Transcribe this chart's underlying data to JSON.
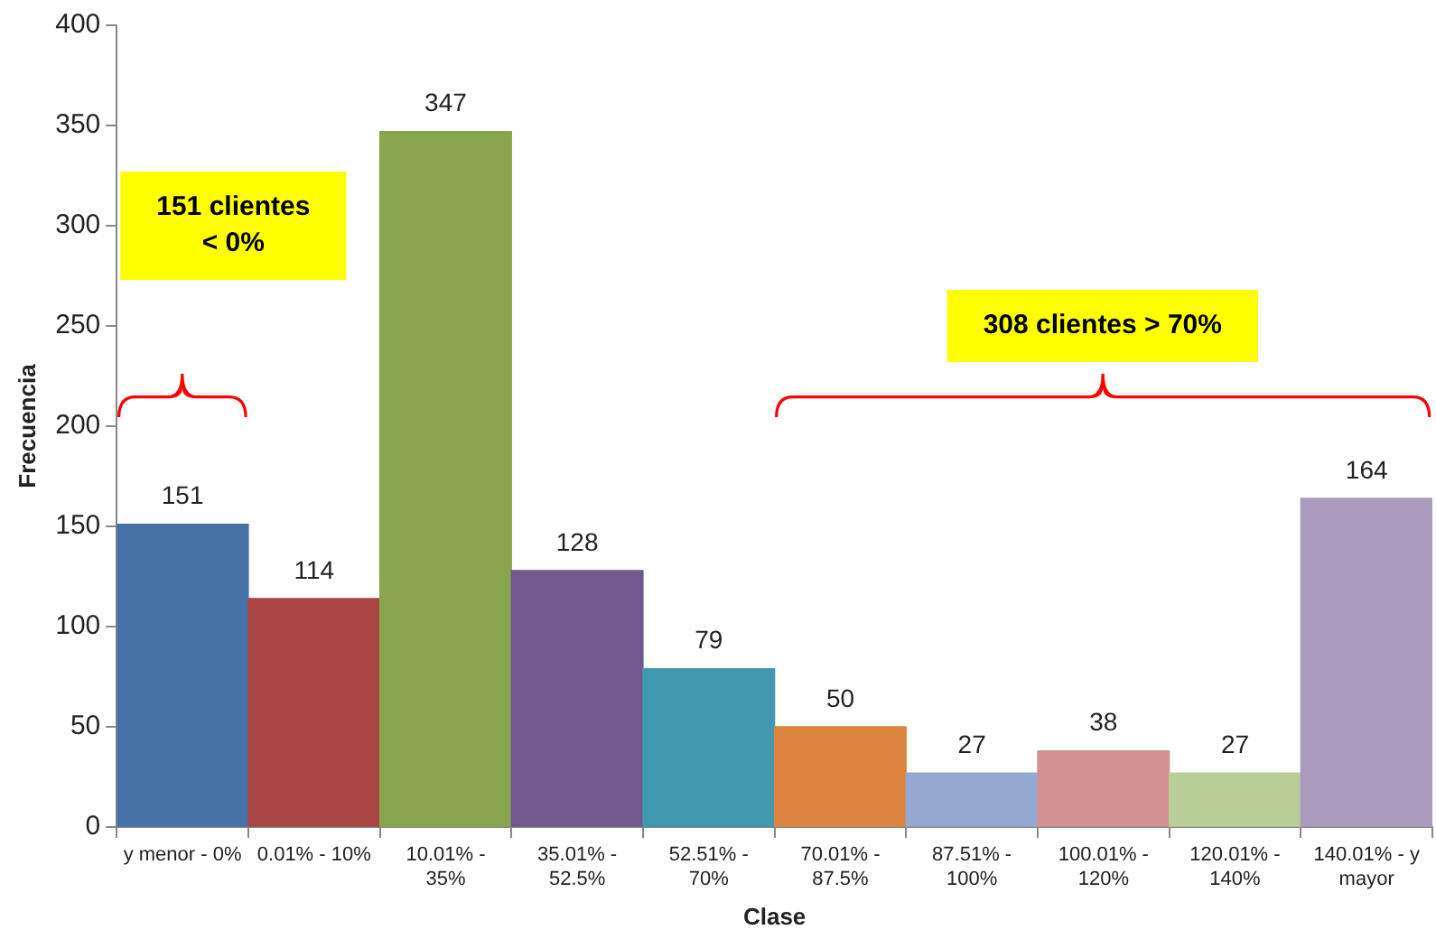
{
  "chart_data": {
    "type": "bar",
    "xlabel": "Clase",
    "ylabel": "Frecuencia",
    "categories": [
      "y menor - 0%",
      "0.01% - 10%",
      "10.01% - 35%",
      "35.01% - 52.5%",
      "52.51% - 70%",
      "70.01% - 87.5%",
      "87.51% - 100%",
      "100.01% - 120%",
      "120.01% - 140%",
      "140.01% - y mayor"
    ],
    "values": [
      151,
      114,
      347,
      128,
      79,
      50,
      27,
      38,
      27,
      164
    ],
    "colors": [
      "#4672a8",
      "#a94543",
      "#89a54e",
      "#71588f",
      "#4198af",
      "#db843d",
      "#93a9cf",
      "#d19392",
      "#b9cd96",
      "#a99bbd"
    ],
    "ylim": [
      0,
      400
    ],
    "yticks": [
      0,
      50,
      100,
      150,
      200,
      250,
      300,
      350,
      400
    ],
    "grid": false,
    "legend": false,
    "data_labels": true,
    "annotations": [
      "151 clientes < 0%",
      "308 clientes > 70%"
    ]
  }
}
